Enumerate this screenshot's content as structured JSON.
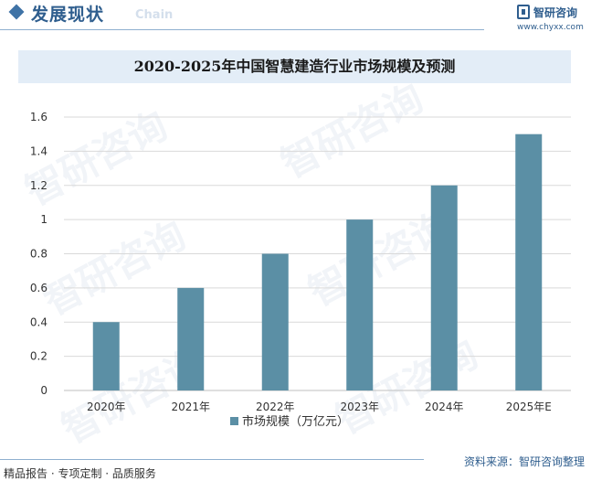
{
  "header": {
    "title": "发展现状",
    "subtitle": "Chain",
    "logo_text": "智研咨询",
    "logo_url": "www.chyxx.com"
  },
  "watermark": "智研咨询",
  "chart_data": {
    "type": "bar",
    "title": "2020-2025年中国智慧建造行业市场规模及预测",
    "categories": [
      "2020年",
      "2021年",
      "2022年",
      "2023年",
      "2024年",
      "2025年E"
    ],
    "series": [
      {
        "name": "市场规模（万亿元）",
        "values": [
          0.4,
          0.6,
          0.8,
          1.0,
          1.2,
          1.5
        ]
      }
    ],
    "yticks": [
      "0",
      "0.2",
      "0.4",
      "0.6",
      "0.8",
      "1",
      "1.2",
      "1.4",
      "1.6"
    ],
    "ylim": [
      0,
      1.6
    ],
    "xlabel": "",
    "ylabel": "",
    "legend_position": "bottom",
    "bar_color": "#5b8fa5",
    "grid": true
  },
  "footer": {
    "left": "精品报告 · 专项定制 · 品质服务",
    "source": "资料来源：智研咨询整理"
  }
}
